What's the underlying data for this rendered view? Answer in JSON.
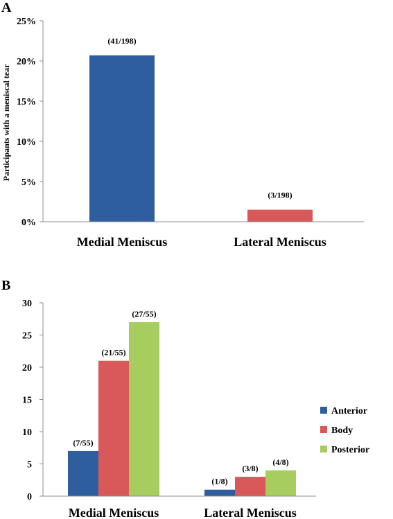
{
  "chart_data": [
    {
      "panel": "A",
      "type": "bar",
      "ylabel": "Participants with a meniscal tear",
      "categories": [
        "Medial Meniscus",
        "Lateral Meniscus"
      ],
      "values": [
        20.7,
        1.5
      ],
      "data_labels": [
        "(41/198)",
        "(3/198)"
      ],
      "ylim": [
        0,
        25
      ],
      "yticks": [
        "0%",
        "5%",
        "10%",
        "15%",
        "20%",
        "25%"
      ],
      "colors": [
        "#2E5E9E",
        "#D9585A"
      ],
      "grid": false
    },
    {
      "panel": "B",
      "type": "bar",
      "categories": [
        "Medial Meniscus",
        "Lateral Meniscus"
      ],
      "series": [
        {
          "name": "Anterior",
          "values": [
            7,
            1
          ],
          "data_labels": [
            "(7/55)",
            "(1/8)"
          ],
          "color": "#2E5E9E"
        },
        {
          "name": "Body",
          "values": [
            21,
            3
          ],
          "data_labels": [
            "(21/55)",
            "(3/8)"
          ],
          "color": "#D9585A"
        },
        {
          "name": "Posterior",
          "values": [
            27,
            4
          ],
          "data_labels": [
            "(27/55)",
            "(4/8)"
          ],
          "color": "#A6CD5E"
        }
      ],
      "ylim": [
        0,
        30
      ],
      "yticks": [
        "0",
        "5",
        "10",
        "15",
        "20",
        "25",
        "30"
      ],
      "legend_position": "right",
      "grid": false
    }
  ]
}
